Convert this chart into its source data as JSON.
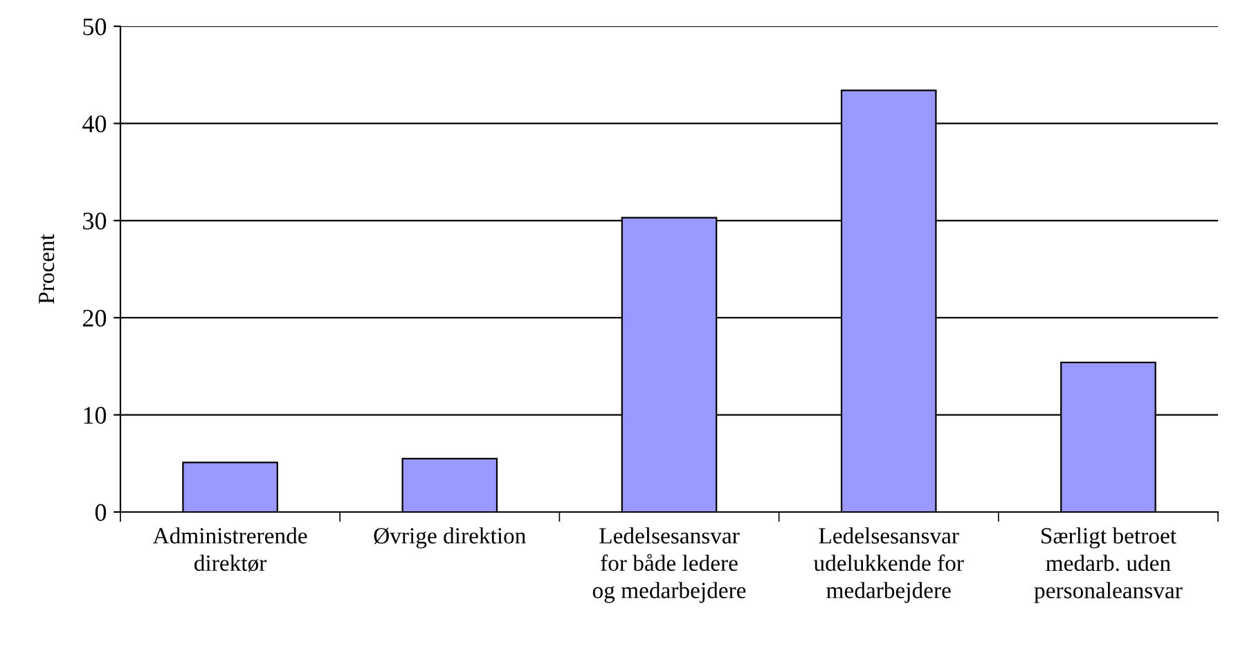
{
  "chart_data": {
    "type": "bar",
    "ylabel": "Procent",
    "categories": [
      "Administrerende\ndirektør",
      "Øvrige direktion",
      "Ledelsesansvar\nfor både ledere\nog medarbejdere",
      "Ledelsesansvar\nudelukkende for\nmedarbejdere",
      "Særligt betroet\nmedarb. uden\npersonaleansvar"
    ],
    "values": [
      5.1,
      5.5,
      30.3,
      43.4,
      15.4
    ],
    "color": "#9999ff",
    "ylim": [
      0,
      50
    ],
    "yticks": [
      0,
      10,
      20,
      30,
      40,
      50
    ],
    "grid": "y",
    "legend": false
  }
}
